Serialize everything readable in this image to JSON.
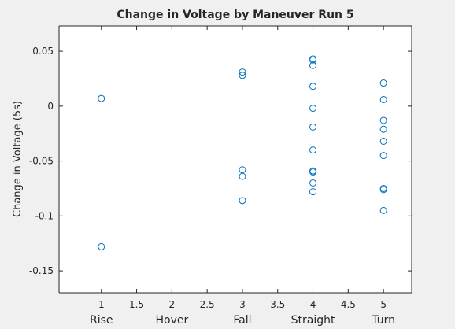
{
  "chart_data": {
    "type": "scatter",
    "title": "Change in Voltage by Maneuver Run 5",
    "xlabel": "",
    "ylabel": "Change in Voltage (5s)",
    "xlim": [
      0.4,
      5.4
    ],
    "ylim": [
      -0.17,
      0.073
    ],
    "xticks": [
      1,
      1.5,
      2,
      2.5,
      3,
      3.5,
      4,
      4.5,
      5
    ],
    "xtick_labels": [
      "1",
      "1.5",
      "2",
      "2.5",
      "3",
      "3.5",
      "4",
      "4.5",
      "5"
    ],
    "yticks": [
      0.05,
      0,
      -0.05,
      -0.1,
      -0.15
    ],
    "ytick_labels": [
      "0.05",
      "0",
      "-0.05",
      "-0.1",
      "-0.15"
    ],
    "categories": [
      {
        "x": 1,
        "label": "Rise"
      },
      {
        "x": 2,
        "label": "Hover"
      },
      {
        "x": 3,
        "label": "Fall"
      },
      {
        "x": 4,
        "label": "Straight"
      },
      {
        "x": 5,
        "label": "Turn"
      }
    ],
    "marker": "circle-open",
    "color": "#0072bd",
    "axes_color": "#262626",
    "background": "#ffffff",
    "figure_background": "#f0f0f0",
    "grid": false,
    "legend": "none",
    "points": [
      {
        "x": 1,
        "y": 0.007
      },
      {
        "x": 1,
        "y": -0.128
      },
      {
        "x": 3,
        "y": 0.031
      },
      {
        "x": 3,
        "y": 0.028
      },
      {
        "x": 3,
        "y": -0.058
      },
      {
        "x": 3,
        "y": -0.064
      },
      {
        "x": 3,
        "y": -0.086
      },
      {
        "x": 4,
        "y": 0.043
      },
      {
        "x": 4,
        "y": 0.042
      },
      {
        "x": 4,
        "y": 0.037
      },
      {
        "x": 4,
        "y": 0.018
      },
      {
        "x": 4,
        "y": -0.002
      },
      {
        "x": 4,
        "y": -0.019
      },
      {
        "x": 4,
        "y": -0.04
      },
      {
        "x": 4,
        "y": -0.059
      },
      {
        "x": 4,
        "y": -0.06
      },
      {
        "x": 4,
        "y": -0.07
      },
      {
        "x": 4,
        "y": -0.078
      },
      {
        "x": 5,
        "y": 0.021
      },
      {
        "x": 5,
        "y": 0.006
      },
      {
        "x": 5,
        "y": -0.013
      },
      {
        "x": 5,
        "y": -0.021
      },
      {
        "x": 5,
        "y": -0.032
      },
      {
        "x": 5,
        "y": -0.045
      },
      {
        "x": 5,
        "y": -0.075
      },
      {
        "x": 5,
        "y": -0.076
      },
      {
        "x": 5,
        "y": -0.095
      }
    ]
  }
}
